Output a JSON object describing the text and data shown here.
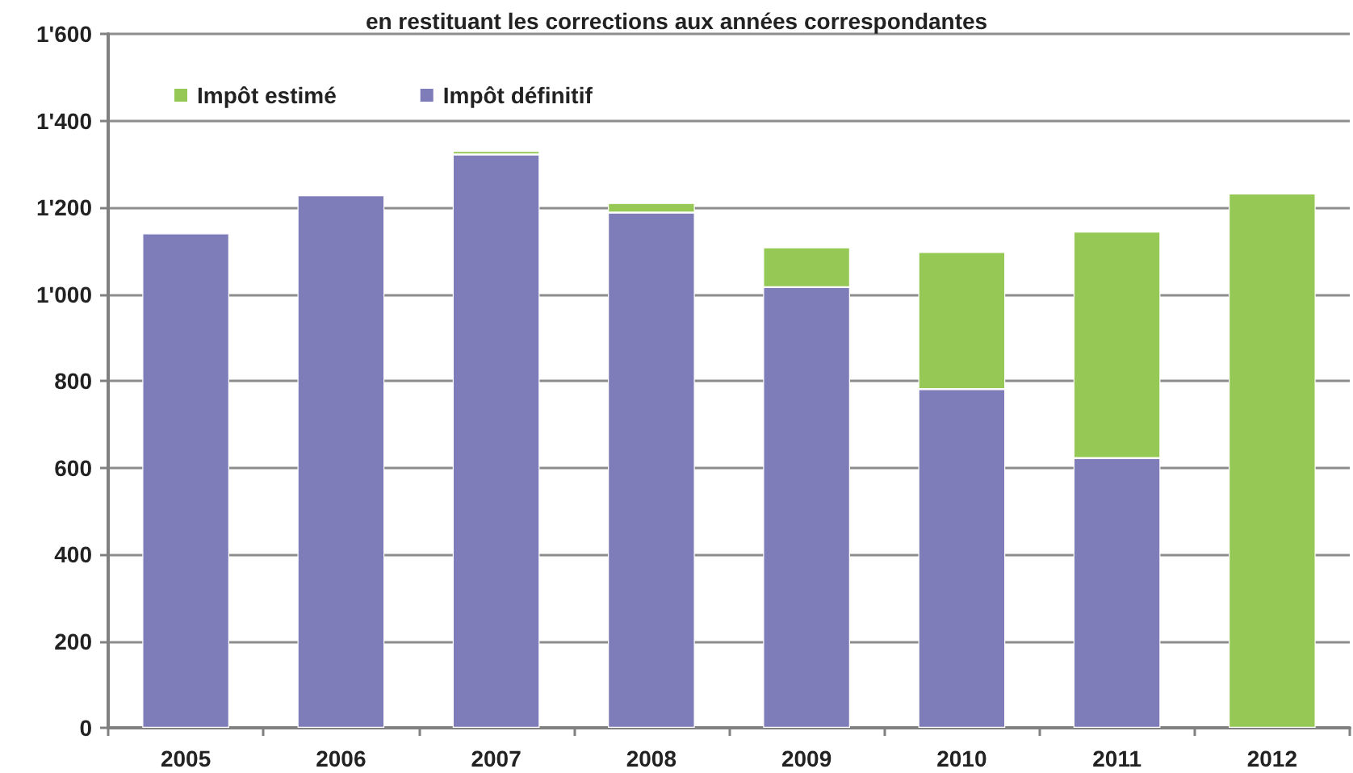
{
  "chart_data": {
    "type": "bar",
    "title": "en restituant les corrections aux années correspondantes",
    "categories": [
      "2005",
      "2006",
      "2007",
      "2008",
      "2009",
      "2010",
      "2011",
      "2012"
    ],
    "series": [
      {
        "name": "Impôt définitif",
        "color": "#7f7cba",
        "values": [
          1140,
          1228,
          1322,
          1188,
          1016,
          781,
          622,
          null
        ]
      },
      {
        "name": "Impôt estimé",
        "color": "#96c855",
        "values": [
          null,
          null,
          8,
          22,
          92,
          316,
          522,
          1232
        ]
      }
    ],
    "stacked": true,
    "ylim": [
      0,
      1600
    ],
    "yticks": [
      0,
      200,
      400,
      600,
      800,
      {
        "value": 1000,
        "label": "1'000"
      },
      {
        "value": 1200,
        "label": "1'200"
      },
      {
        "value": 1400,
        "label": "1'400"
      },
      {
        "value": 1600,
        "label": "1'600"
      }
    ],
    "grid": "y",
    "legend": "top left"
  }
}
